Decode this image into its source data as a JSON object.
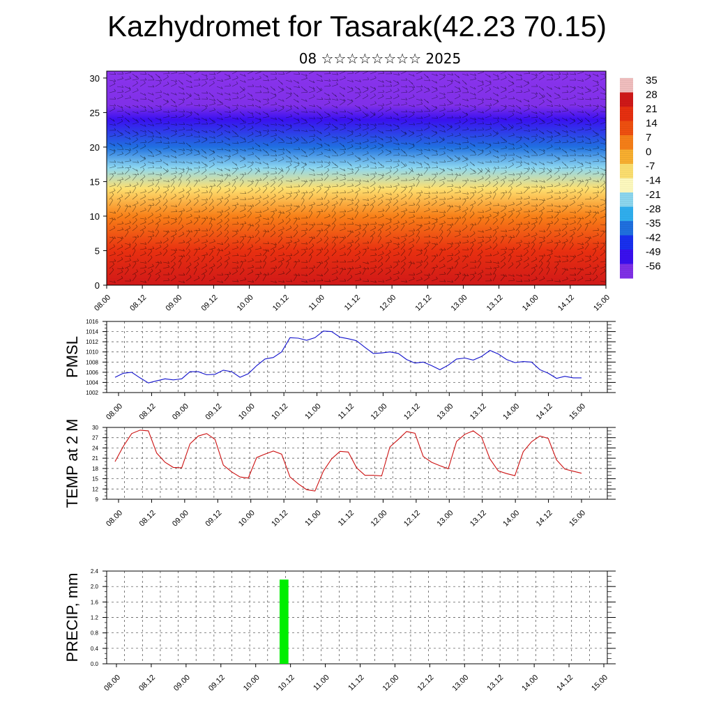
{
  "title": "Kazhydromet for Tasarak(42.23 70.15)",
  "subtitle": "08 ☆☆☆☆☆☆☆☆ 2025",
  "colors": {
    "pmsl_line": "#1010cc",
    "temp_line": "#cc1010",
    "precip_bar": "#00ee00",
    "grid": "#444444"
  },
  "chart_data": [
    {
      "type": "heatmap",
      "name": "cross-section",
      "x_ticks": [
        "08.00",
        "08.12",
        "09.00",
        "09.12",
        "10.00",
        "10.12",
        "11.00",
        "11.12",
        "12.00",
        "12.12",
        "13.00",
        "13.12",
        "14.00",
        "14.12",
        "15.00"
      ],
      "y_ticks": [
        0,
        5,
        10,
        15,
        20,
        25,
        30
      ],
      "ylim": [
        0,
        31
      ],
      "colorbar_labels": [
        35,
        28,
        21,
        14,
        7,
        0,
        -7,
        -14,
        -21,
        -28,
        -35,
        -42,
        -49,
        -56
      ],
      "colorbar_colors": [
        "#f2c0c0",
        "#d01818",
        "#e83010",
        "#f05010",
        "#f88018",
        "#fab030",
        "#fde070",
        "#fffbc0",
        "#8ed8f0",
        "#30b0f0",
        "#2070e0",
        "#1830f0",
        "#3a10f0",
        "#8030e8"
      ],
      "profile": [
        {
          "height": 0,
          "value": 28
        },
        {
          "height": 5,
          "value": 21
        },
        {
          "height": 10,
          "value": 7
        },
        {
          "height": 14,
          "value": -7
        },
        {
          "height": 17,
          "value": -21
        },
        {
          "height": 20,
          "value": -35
        },
        {
          "height": 24,
          "value": -49
        },
        {
          "height": 26,
          "value": -56
        },
        {
          "height": 31,
          "value": -60
        }
      ]
    },
    {
      "type": "line",
      "name": "pmsl",
      "ylabel": "PMSL",
      "ylim": [
        1002,
        1016
      ],
      "y_ticks": [
        1002,
        1004,
        1006,
        1008,
        1010,
        1012,
        1014,
        1016
      ],
      "x_ticks": [
        "08.00",
        "08.12",
        "09.00",
        "09.12",
        "10.00",
        "10.12",
        "11.00",
        "11.12",
        "12.00",
        "12.12",
        "13.00",
        "13.12",
        "14.00",
        "14.12",
        "15.00"
      ],
      "x": [
        0,
        3,
        6,
        9,
        12,
        15,
        18,
        21,
        24,
        27,
        30,
        33,
        36,
        39,
        42,
        45,
        48,
        51,
        54,
        57,
        60,
        63,
        66,
        69,
        72,
        75,
        78,
        81,
        84,
        87,
        90,
        93,
        96,
        99,
        102,
        105,
        108,
        111,
        114,
        117,
        120,
        123,
        126,
        129,
        132,
        135,
        138,
        141,
        144,
        147,
        150,
        153,
        156,
        159,
        162,
        165,
        168
      ],
      "values": [
        1005.0,
        1005.8,
        1006.0,
        1004.9,
        1003.9,
        1004.3,
        1004.7,
        1004.5,
        1004.7,
        1006.1,
        1006.1,
        1005.5,
        1005.6,
        1006.4,
        1006.1,
        1005.0,
        1005.7,
        1007.3,
        1008.6,
        1008.9,
        1010.0,
        1012.8,
        1012.7,
        1012.3,
        1012.8,
        1014.1,
        1014.0,
        1012.9,
        1012.6,
        1012.2,
        1010.9,
        1009.7,
        1009.8,
        1010.0,
        1009.7,
        1008.5,
        1007.8,
        1008.0,
        1007.3,
        1006.5,
        1007.4,
        1008.6,
        1008.8,
        1008.4,
        1009.1,
        1010.3,
        1009.6,
        1008.5,
        1007.9,
        1008.1,
        1008.0,
        1006.5,
        1005.8,
        1004.8,
        1005.2,
        1004.9,
        1004.9
      ]
    },
    {
      "type": "line",
      "name": "temp",
      "ylabel": "TEMP at 2 M",
      "ylim": [
        9,
        30
      ],
      "y_ticks": [
        9,
        12,
        15,
        18,
        21,
        24,
        27,
        30
      ],
      "x_ticks": [
        "08.00",
        "08.12",
        "09.00",
        "09.12",
        "10.00",
        "10.12",
        "11.00",
        "11.12",
        "12.00",
        "12.12",
        "13.00",
        "13.12",
        "14.00",
        "14.12",
        "15.00"
      ],
      "x": [
        0,
        3,
        6,
        9,
        12,
        15,
        18,
        21,
        24,
        27,
        30,
        33,
        36,
        39,
        42,
        45,
        48,
        51,
        54,
        57,
        60,
        63,
        66,
        69,
        72,
        75,
        78,
        81,
        84,
        87,
        90,
        93,
        96,
        99,
        102,
        105,
        108,
        111,
        114,
        117,
        120,
        123,
        126,
        129,
        132,
        135,
        138,
        141,
        144,
        147,
        150,
        153,
        156,
        159,
        162,
        165,
        168
      ],
      "values": [
        20.0,
        24.5,
        28.2,
        29.2,
        29.0,
        22.5,
        19.8,
        18.3,
        18.2,
        25.2,
        27.5,
        28.2,
        26.5,
        19.0,
        17.0,
        15.5,
        15.2,
        21.2,
        22.2,
        23.1,
        22.2,
        15.5,
        13.5,
        11.8,
        11.4,
        17.2,
        20.8,
        23.0,
        22.8,
        18.2,
        16.0,
        16.0,
        15.8,
        24.3,
        26.5,
        28.8,
        28.3,
        21.5,
        19.8,
        18.8,
        17.9,
        25.9,
        28.0,
        29.0,
        27.2,
        20.8,
        17.3,
        16.5,
        15.9,
        22.9,
        25.8,
        27.5,
        26.8,
        20.5,
        17.8,
        17.2,
        16.6
      ]
    },
    {
      "type": "bar",
      "name": "precip",
      "ylabel": "PRECIP, mm",
      "ylim": [
        0,
        2.4
      ],
      "y_ticks": [
        "0.0",
        "0.4",
        "0.8",
        "1.2",
        "1.6",
        "2.0",
        "2.4"
      ],
      "x_ticks": [
        "08.00",
        "08.12",
        "09.00",
        "09.12",
        "10.00",
        "10.12",
        "11.00",
        "11.12",
        "12.00",
        "12.12",
        "13.00",
        "13.12",
        "14.00",
        "14.12",
        "15.00"
      ],
      "x": [
        63
      ],
      "bar_width": 3,
      "values": [
        2.18
      ]
    }
  ]
}
